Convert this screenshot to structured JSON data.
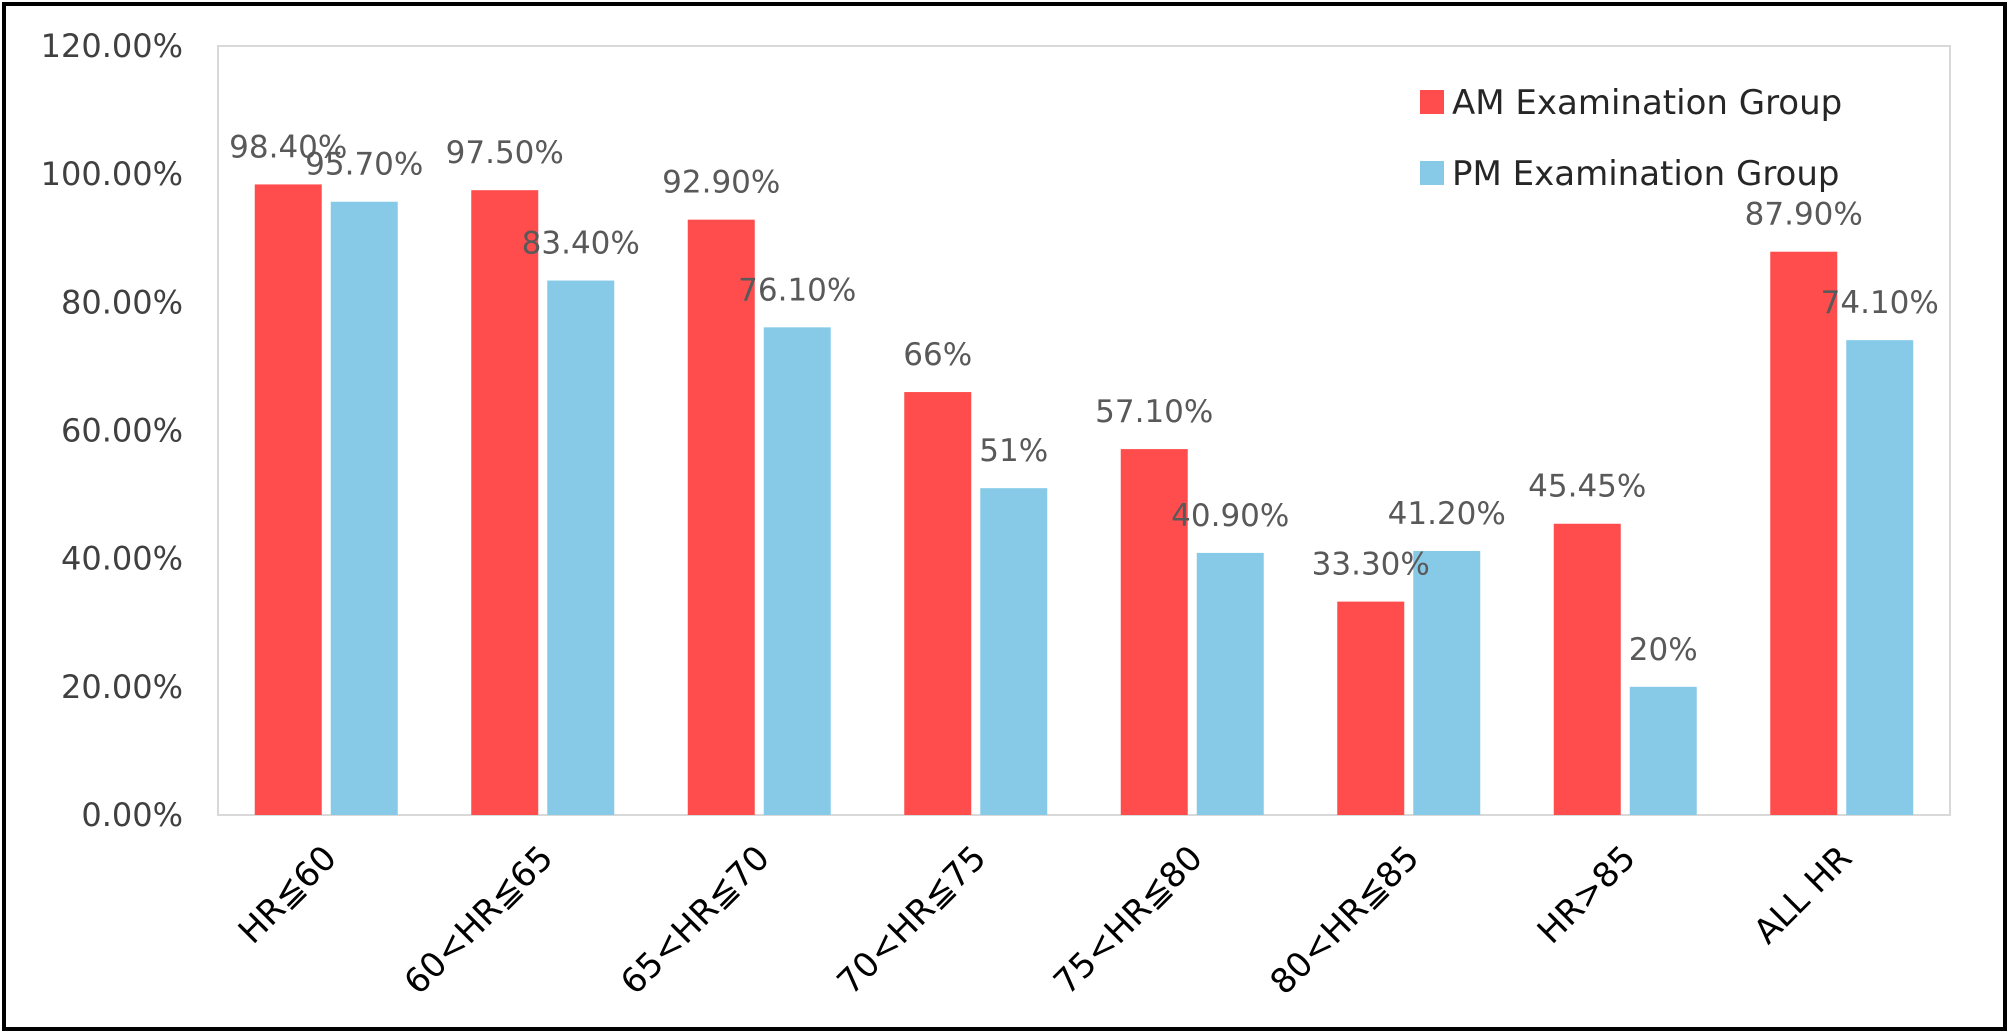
{
  "chart_data": {
    "type": "bar",
    "categories": [
      "HR≦60",
      "60<HR≦65",
      "65<HR≦70",
      "70<HR≦75",
      "75<HR≦80",
      "80<HR≦85",
      "HR>85",
      "ALL HR"
    ],
    "series": [
      {
        "name": "AM Examination Group",
        "color": "#FF4D4D",
        "values": [
          98.4,
          97.5,
          92.9,
          66,
          57.1,
          33.3,
          45.45,
          87.9
        ],
        "labels": [
          "98.40%",
          "97.50%",
          "92.90%",
          "66%",
          "57.10%",
          "33.30%",
          "45.45%",
          "87.90%"
        ]
      },
      {
        "name": "PM Examination Group",
        "color": "#87CAE8",
        "values": [
          95.7,
          83.4,
          76.1,
          51,
          40.9,
          41.2,
          20,
          74.1
        ],
        "labels": [
          "95.70%",
          "83.40%",
          "76.10%",
          "51%",
          "40.90%",
          "41.20%",
          "20%",
          "74.10%"
        ]
      }
    ],
    "ylim": [
      0,
      120
    ],
    "yticks": [
      "0.00%",
      "20.00%",
      "40.00%",
      "60.00%",
      "80.00%",
      "100.00%",
      "120.00%"
    ],
    "title": "",
    "xlabel": "",
    "ylabel": "",
    "grid": false,
    "legend_position": "top-right"
  }
}
